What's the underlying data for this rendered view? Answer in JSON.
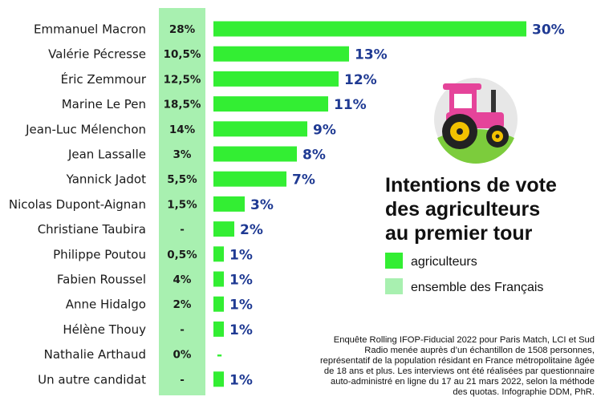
{
  "chart_data": {
    "type": "bar",
    "orientation": "horizontal",
    "title": [
      "Intentions de vote",
      "des agriculteurs",
      "au premier tour"
    ],
    "categories": [
      "Emmanuel Macron",
      "Valérie Pécresse",
      "Éric Zemmour",
      "Marine Le Pen",
      "Jean-Luc Mélenchon",
      "Jean Lassalle",
      "Yannick Jadot",
      "Nicolas Dupont-Aignan",
      "Christiane Taubira",
      "Philippe Poutou",
      "Fabien Roussel",
      "Anne Hidalgo",
      "Hélène Thouy",
      "Nathalie Arthaud",
      "Un autre candidat"
    ],
    "series": [
      {
        "name": "agriculteurs",
        "values": [
          30,
          13,
          12,
          11,
          9,
          8,
          7,
          3,
          2,
          1,
          1,
          1,
          1,
          0,
          1
        ],
        "labels": [
          "30%",
          "13%",
          "12%",
          "11%",
          "9%",
          "8%",
          "7%",
          "3%",
          "2%",
          "1%",
          "1%",
          "1%",
          "1%",
          "-",
          "1%"
        ],
        "color": "#33ee33"
      },
      {
        "name": "ensemble des Français",
        "labels": [
          "28%",
          "10,5%",
          "12,5%",
          "18,5%",
          "14%",
          "3%",
          "5,5%",
          "1,5%",
          "-",
          "0,5%",
          "4%",
          "2%",
          "-",
          "0%",
          "-"
        ],
        "color": "#a8f0b0"
      }
    ],
    "xlim": [
      0,
      30
    ],
    "legend": "right",
    "grid": false
  },
  "source_lines": [
    "Enquête Rolling IFOP-Fiducial 2022 pour Paris Match, LCI et Sud",
    "Radio menée auprès d’un échantillon de 1508 personnes,",
    "représentatif de la population résidant en France métropolitaine âgée",
    "de 18 ans et plus. Les interviews ont été réalisées par questionnaire",
    "auto-administré en ligne du 17 au 21 mars 2022, selon la méthode",
    "des quotas. Infographie DDM, PhR."
  ],
  "icon": "tractor-icon",
  "colors": {
    "bar": "#33ee33",
    "column": "#a8f0b0",
    "value_text": "#1f3a93",
    "tractor_body": "#e5449a",
    "tractor_wheel": "#222222",
    "tractor_hub": "#f2c200",
    "grass": "#7ccc3c"
  }
}
